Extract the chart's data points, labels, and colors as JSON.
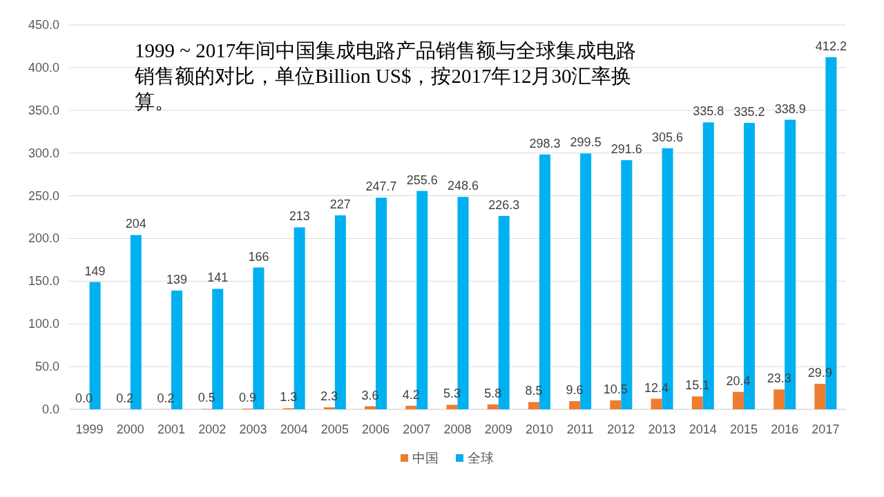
{
  "chart_data": {
    "type": "bar",
    "title": "1999 ~ 2017年间中国集成电路产品销售额与全球集成电路销售额的对比，单位Billion US$，按2017年12月30汇率换算。",
    "categories": [
      "1999",
      "2000",
      "2001",
      "2002",
      "2003",
      "2004",
      "2005",
      "2006",
      "2007",
      "2008",
      "2009",
      "2010",
      "2011",
      "2012",
      "2013",
      "2014",
      "2015",
      "2016",
      "2017"
    ],
    "series": [
      {
        "name": "中国",
        "color": "#ed7d31",
        "values": [
          0.0,
          0.2,
          0.2,
          0.5,
          0.9,
          1.3,
          2.3,
          3.6,
          4.2,
          5.3,
          5.8,
          8.5,
          9.6,
          10.5,
          12.4,
          15.1,
          20.4,
          23.3,
          29.9
        ],
        "value_labels": [
          "0.0",
          "0.2",
          "0.2",
          "0.5",
          "0.9",
          "1.3",
          "2.3",
          "3.6",
          "4.2",
          "5.3",
          "5.8",
          "8.5",
          "9.6",
          "10.5",
          "12.4",
          "15.1",
          "20.4",
          "23.3",
          "29.9"
        ]
      },
      {
        "name": "全球",
        "color": "#00b0f0",
        "values": [
          149,
          204,
          139,
          141,
          166,
          213,
          227,
          247.7,
          255.6,
          248.6,
          226.3,
          298.3,
          299.5,
          291.6,
          305.6,
          335.8,
          335.2,
          338.9,
          412.2
        ],
        "value_labels": [
          "149",
          "204",
          "139",
          "141",
          "166",
          "213",
          "227",
          "247.7",
          "255.6",
          "248.6",
          "226.3",
          "298.3",
          "299.5",
          "291.6",
          "305.6",
          "335.8",
          "335.2",
          "338.9",
          "412.2"
        ]
      }
    ],
    "ylim": [
      0,
      450
    ],
    "yticks": [
      {
        "value": 0,
        "label": "0.0"
      },
      {
        "value": 50,
        "label": "50.0"
      },
      {
        "value": 100,
        "label": "100.0"
      },
      {
        "value": 150,
        "label": "150.0"
      },
      {
        "value": 200,
        "label": "200.0"
      },
      {
        "value": 250,
        "label": "250.0"
      },
      {
        "value": 300,
        "label": "300.0"
      },
      {
        "value": 350,
        "label": "350.0"
      },
      {
        "value": 400,
        "label": "400.0"
      },
      {
        "value": 450,
        "label": "450.0"
      }
    ],
    "grid": "y",
    "legend": "bottom"
  }
}
